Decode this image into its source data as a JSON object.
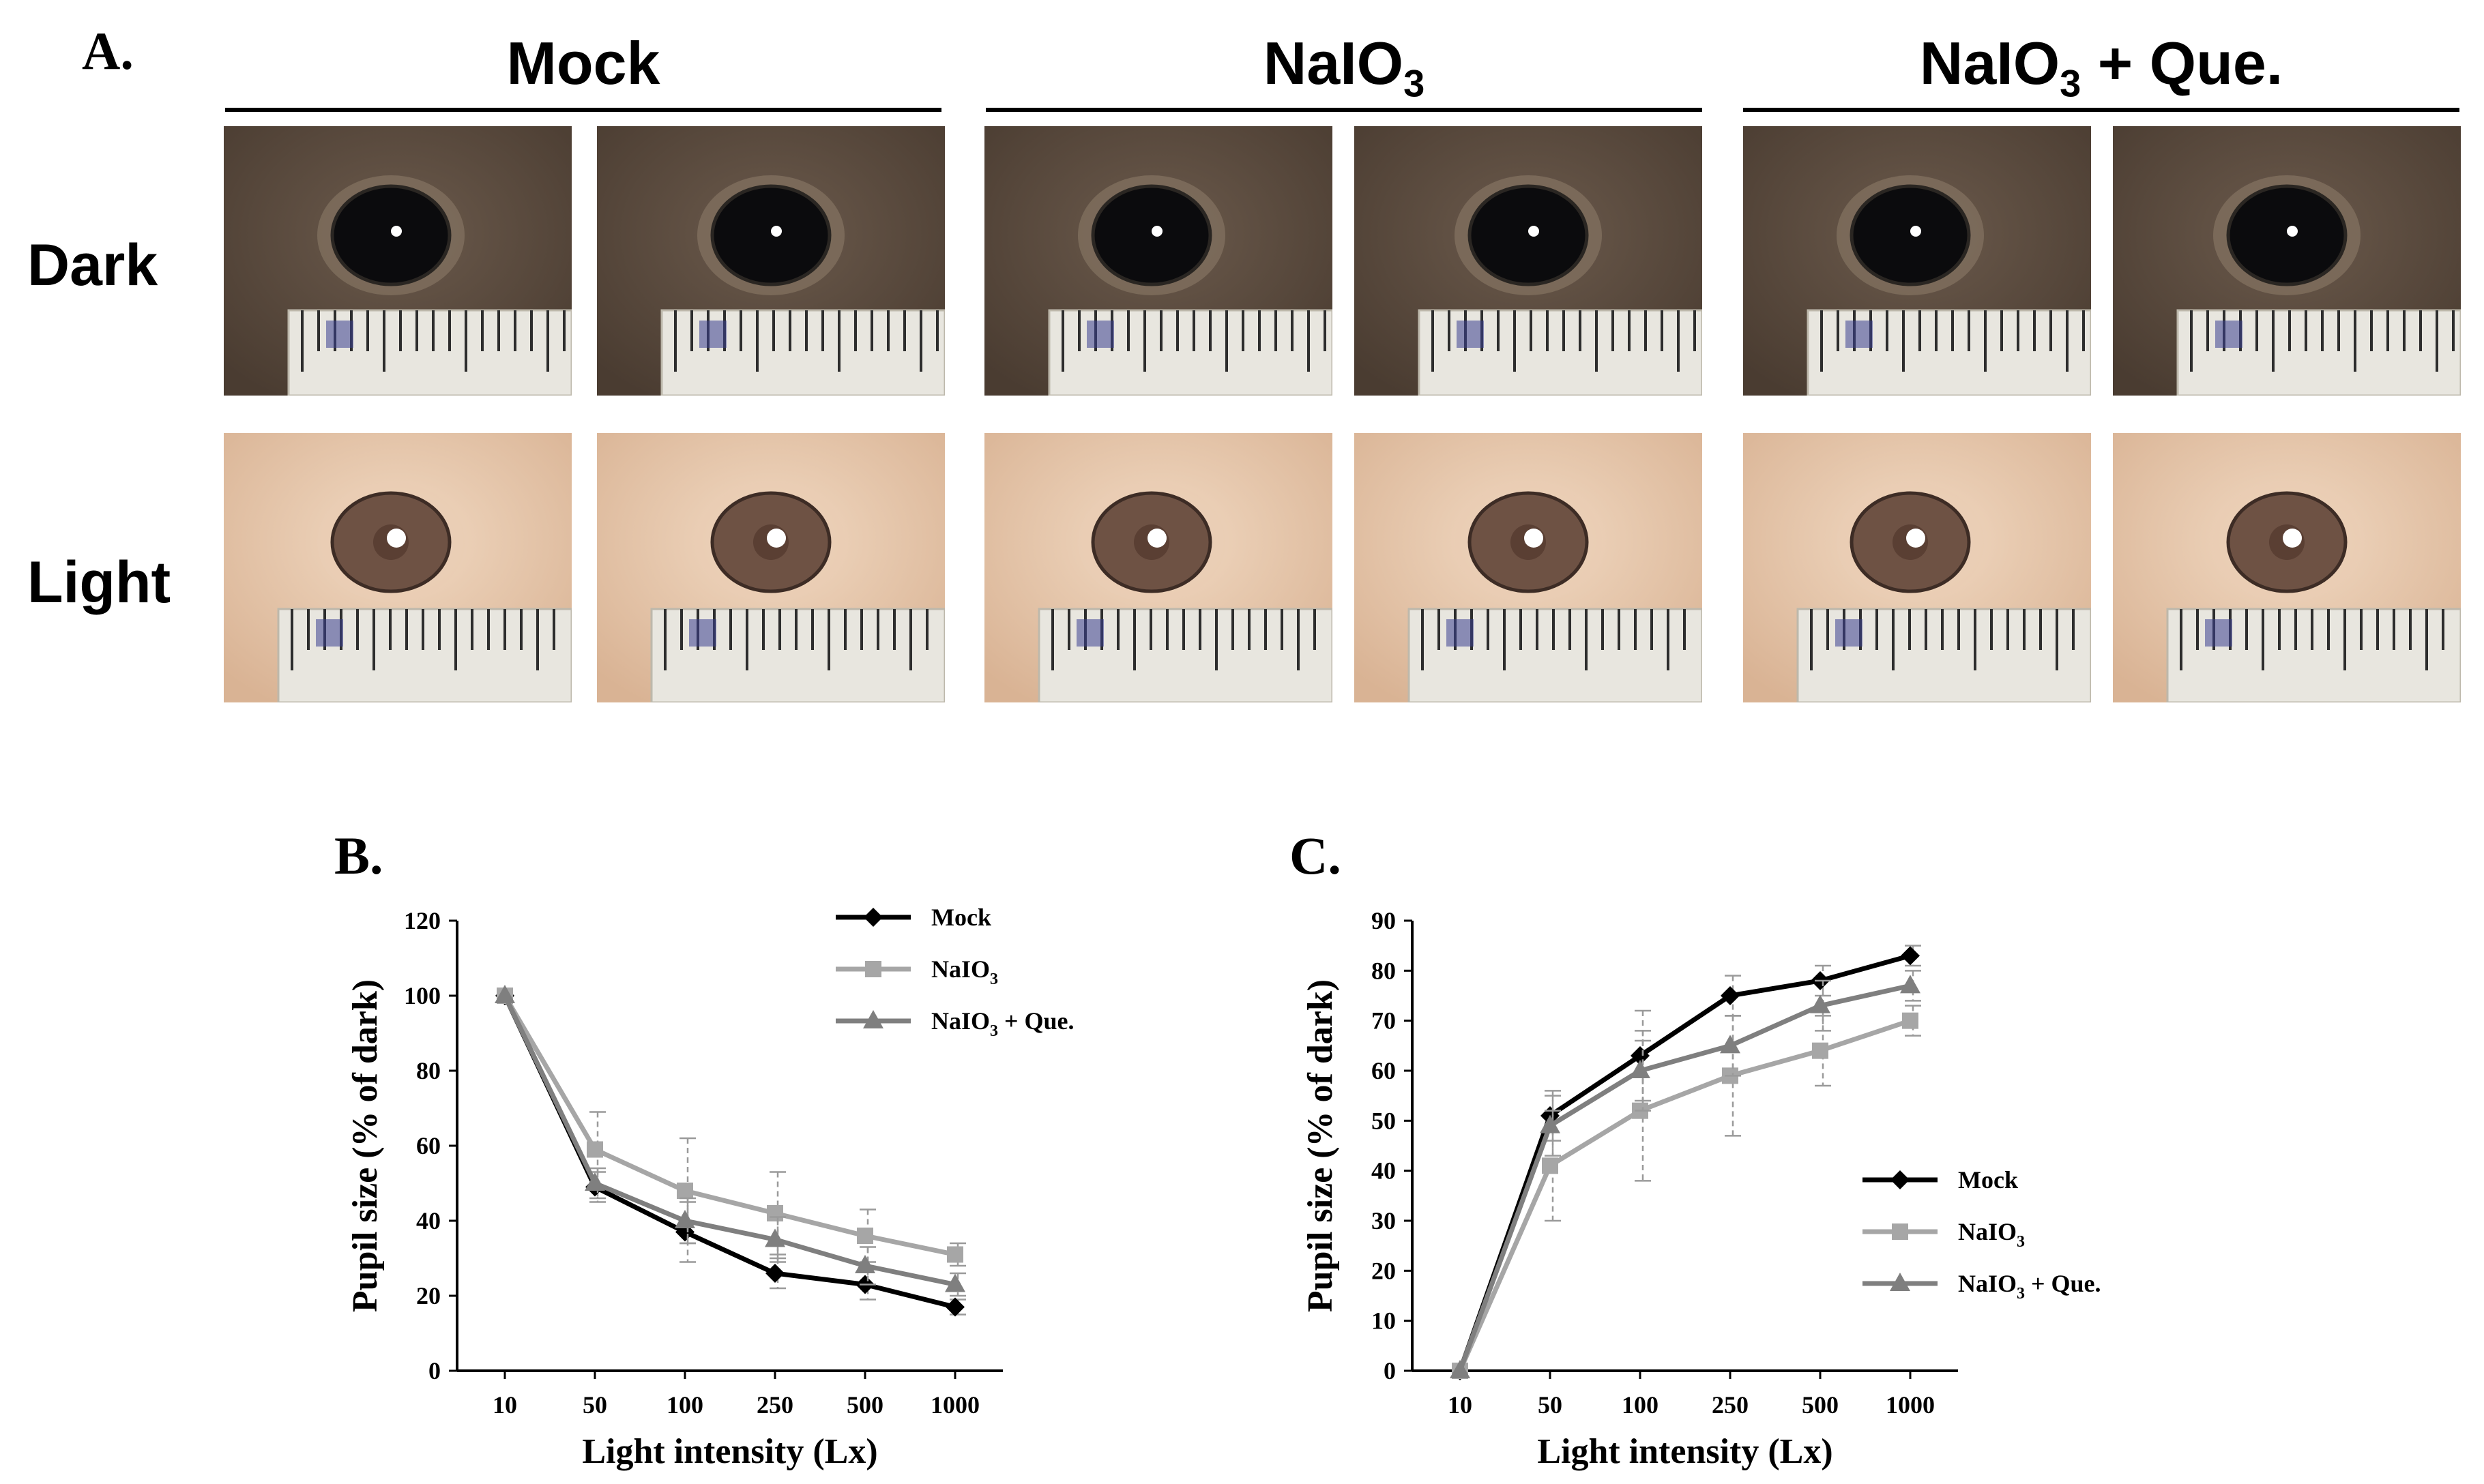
{
  "panel_a": {
    "label": "A.",
    "groups": [
      {
        "title": "Mock",
        "subscript": "",
        "suffix": ""
      },
      {
        "title": "NaIO",
        "subscript": "3",
        "suffix": ""
      },
      {
        "title": "NaIO",
        "subscript": "3",
        "suffix": " + Que."
      }
    ],
    "rows": [
      "Dark",
      "Light"
    ],
    "colors": {
      "dark_fur": "#4a3c31",
      "light_fur": "#d9b394",
      "pupil_dark": "#0b0b0d",
      "pupil_light": "#6e5244",
      "ruler": "#e8e6df",
      "ruler_ink": "#3a3f8f"
    }
  },
  "legend_labels": {
    "mock": "Mock",
    "naio3_base": "NaIO",
    "naio3_sub": "3",
    "que_suffix": " + Que."
  },
  "chart_data": [
    {
      "panel": "B.",
      "type": "line",
      "title": "",
      "xlabel": "Light intensity (Lx)",
      "ylabel": "Pupil size (% of dark)",
      "categories": [
        "10",
        "50",
        "100",
        "250",
        "500",
        "1000"
      ],
      "ylim": [
        0,
        120
      ],
      "yticks": [
        0,
        20,
        40,
        60,
        80,
        100,
        120
      ],
      "legend_position": "top-right",
      "series": [
        {
          "key": "mock",
          "name": "Mock",
          "color": "#000000",
          "marker": "diamond",
          "values": [
            100,
            49,
            37,
            26,
            23,
            17
          ],
          "errors": [
            0,
            4,
            8,
            4,
            4,
            2
          ]
        },
        {
          "key": "naio3",
          "name": "NaIO3",
          "color": "#a6a6a6",
          "marker": "square",
          "values": [
            100,
            59,
            48,
            42,
            36,
            31
          ],
          "errors": [
            0,
            10,
            14,
            11,
            7,
            3
          ]
        },
        {
          "key": "que",
          "name": "NaIO3 + Que.",
          "color": "#7f7f7f",
          "marker": "triangle",
          "values": [
            100,
            50,
            40,
            35,
            28,
            23
          ],
          "errors": [
            0,
            4,
            6,
            6,
            5,
            3
          ]
        }
      ]
    },
    {
      "panel": "C.",
      "type": "line",
      "title": "",
      "xlabel": "Light intensity (Lx)",
      "ylabel": "Pupil size (% of dark)",
      "categories": [
        "10",
        "50",
        "100",
        "250",
        "500",
        "1000"
      ],
      "ylim": [
        0,
        90
      ],
      "yticks": [
        0,
        10,
        20,
        30,
        40,
        50,
        60,
        70,
        80,
        90
      ],
      "legend_position": "bottom-right",
      "series": [
        {
          "key": "mock",
          "name": "Mock",
          "color": "#000000",
          "marker": "diamond",
          "values": [
            0,
            51,
            63,
            75,
            78,
            83
          ],
          "errors": [
            0,
            5,
            9,
            4,
            3,
            2
          ]
        },
        {
          "key": "naio3",
          "name": "NaIO3",
          "color": "#a6a6a6",
          "marker": "square",
          "values": [
            0,
            41,
            52,
            59,
            64,
            70
          ],
          "errors": [
            0,
            11,
            14,
            12,
            7,
            3
          ]
        },
        {
          "key": "que",
          "name": "NaIO3 + Que.",
          "color": "#7f7f7f",
          "marker": "triangle",
          "values": [
            0,
            49,
            60,
            65,
            73,
            77
          ],
          "errors": [
            0,
            6,
            8,
            6,
            5,
            3
          ]
        }
      ]
    }
  ]
}
